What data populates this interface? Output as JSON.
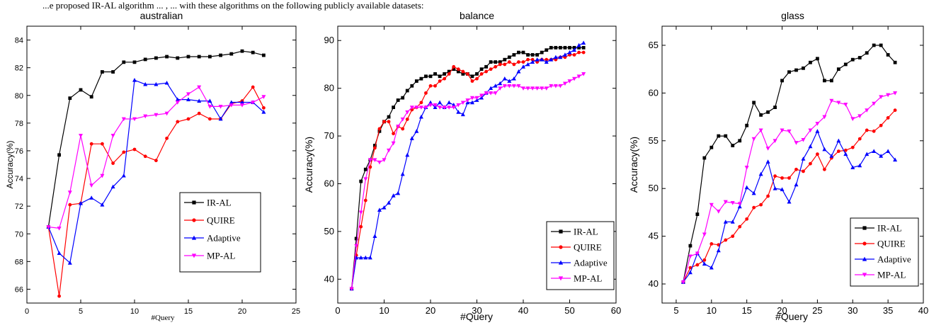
{
  "caption": "...e proposed IR-AL algorithm ... , ... with these algorithms on the following publicly available datasets:",
  "chart_data": [
    {
      "type": "line",
      "title": "australian",
      "xlabel": "#Query",
      "ylabel": "Accuracy(%)",
      "xlim": [
        0,
        25
      ],
      "ylim": [
        65,
        85
      ],
      "xticks": [
        "0",
        "5",
        "10",
        "15",
        "20",
        "25"
      ],
      "yticks": [
        "66",
        "68",
        "70",
        "72",
        "74",
        "76",
        "78",
        "80",
        "82",
        "84"
      ],
      "grid": false,
      "legend_position": "lower-right",
      "series": [
        {
          "name": "IR-AL",
          "color": "#000000",
          "marker": "square",
          "x": [
            2,
            3,
            4,
            5,
            6,
            7,
            8,
            9,
            10,
            11,
            12,
            13,
            14,
            15,
            16,
            17,
            18,
            19,
            20,
            21,
            22
          ],
          "y": [
            70.5,
            75.7,
            79.8,
            80.4,
            79.9,
            81.7,
            81.7,
            82.4,
            82.4,
            82.6,
            82.7,
            82.8,
            82.7,
            82.8,
            82.8,
            82.8,
            82.9,
            83.0,
            83.2,
            83.1,
            82.9
          ]
        },
        {
          "name": "QUIRE",
          "color": "#ff0000",
          "marker": "circle",
          "x": [
            2,
            3,
            4,
            5,
            6,
            7,
            8,
            9,
            10,
            11,
            12,
            13,
            14,
            15,
            16,
            17,
            18,
            19,
            20,
            21,
            22
          ],
          "y": [
            70.5,
            65.5,
            72.1,
            72.2,
            76.5,
            76.5,
            75.1,
            75.9,
            76.1,
            75.6,
            75.3,
            76.9,
            78.1,
            78.3,
            78.7,
            78.3,
            78.3,
            79.4,
            79.6,
            80.6,
            79.1
          ]
        },
        {
          "name": "Adaptive",
          "color": "#0000ff",
          "marker": "triangle",
          "x": [
            2,
            3,
            4,
            5,
            6,
            7,
            8,
            9,
            10,
            11,
            12,
            13,
            14,
            15,
            16,
            17,
            18,
            19,
            20,
            21,
            22
          ],
          "y": [
            70.5,
            68.6,
            67.9,
            72.2,
            72.6,
            72.1,
            73.4,
            74.2,
            81.1,
            80.8,
            80.8,
            80.9,
            79.7,
            79.7,
            79.6,
            79.6,
            78.3,
            79.5,
            79.5,
            79.5,
            78.8
          ]
        },
        {
          "name": "MP-AL",
          "color": "#ff00ff",
          "marker": "triangle-down",
          "x": [
            2,
            3,
            4,
            5,
            6,
            7,
            8,
            9,
            10,
            11,
            12,
            13,
            14,
            15,
            16,
            17,
            18,
            19,
            20,
            21,
            22
          ],
          "y": [
            70.5,
            70.4,
            73.0,
            77.1,
            73.5,
            74.2,
            77.1,
            78.3,
            78.3,
            78.5,
            78.6,
            78.7,
            79.5,
            80.1,
            80.6,
            79.2,
            79.2,
            79.3,
            79.3,
            79.5,
            79.9
          ]
        }
      ]
    },
    {
      "type": "line",
      "title": "balance",
      "xlabel": "#Query",
      "ylabel": "Accuracy(%)",
      "xlim": [
        0,
        60
      ],
      "ylim": [
        35,
        93
      ],
      "xticks": [
        "0",
        "10",
        "20",
        "30",
        "40",
        "50",
        "60"
      ],
      "yticks": [
        "40",
        "50",
        "60",
        "70",
        "80",
        "90"
      ],
      "grid": false,
      "legend_position": "lower-right",
      "series": [
        {
          "name": "IR-AL",
          "color": "#000000",
          "marker": "square",
          "x": [
            3,
            4,
            5,
            6,
            7,
            8,
            9,
            10,
            11,
            12,
            13,
            14,
            15,
            16,
            17,
            18,
            19,
            20,
            21,
            22,
            23,
            24,
            25,
            26,
            27,
            28,
            29,
            30,
            31,
            32,
            33,
            34,
            35,
            36,
            37,
            38,
            39,
            40,
            41,
            42,
            43,
            44,
            45,
            46,
            47,
            48,
            49,
            50,
            51,
            52,
            53
          ],
          "y": [
            38,
            48.5,
            60.5,
            63,
            65,
            68,
            71,
            73,
            74,
            76,
            77.5,
            78,
            79.5,
            80.5,
            81.5,
            82,
            82.5,
            82.5,
            83,
            82.5,
            83,
            83.5,
            84,
            83.5,
            83,
            83,
            82.5,
            83,
            84,
            84.5,
            85.5,
            85.5,
            85.5,
            86,
            86.5,
            87,
            87.5,
            87.5,
            87,
            87,
            87,
            87.5,
            88,
            88.5,
            88.5,
            88.5,
            88.5,
            88.5,
            88.5,
            88.5,
            88.5
          ]
        },
        {
          "name": "QUIRE",
          "color": "#ff0000",
          "marker": "circle",
          "x": [
            3,
            4,
            5,
            6,
            7,
            8,
            9,
            10,
            11,
            12,
            13,
            14,
            15,
            16,
            17,
            18,
            19,
            20,
            21,
            22,
            23,
            24,
            25,
            26,
            27,
            28,
            29,
            30,
            31,
            32,
            33,
            34,
            35,
            36,
            37,
            38,
            39,
            40,
            41,
            42,
            43,
            44,
            45,
            46,
            47,
            48,
            49,
            50,
            51,
            52,
            53
          ],
          "y": [
            38,
            45,
            51,
            56.5,
            63.5,
            67.5,
            71.5,
            73,
            73,
            70.5,
            72,
            71.5,
            73.5,
            75.5,
            76,
            77,
            79,
            80.5,
            80.5,
            81.5,
            82,
            83,
            84.5,
            84,
            83.5,
            83,
            81.5,
            82,
            83,
            83.5,
            84,
            84.5,
            85,
            85,
            85.5,
            85,
            85.5,
            85.5,
            86,
            86,
            85.5,
            86,
            86,
            86,
            86,
            86.5,
            86.5,
            87,
            87,
            87.5,
            87.5
          ]
        },
        {
          "name": "Adaptive",
          "color": "#0000ff",
          "marker": "triangle",
          "x": [
            3,
            4,
            5,
            6,
            7,
            8,
            9,
            10,
            11,
            12,
            13,
            14,
            15,
            16,
            17,
            18,
            19,
            20,
            21,
            22,
            23,
            24,
            25,
            26,
            27,
            28,
            29,
            30,
            31,
            32,
            33,
            34,
            35,
            36,
            37,
            38,
            39,
            40,
            41,
            42,
            43,
            44,
            45,
            46,
            47,
            48,
            49,
            50,
            51,
            52,
            53
          ],
          "y": [
            38,
            44.5,
            44.5,
            44.5,
            44.5,
            49,
            54.5,
            55,
            56,
            57.5,
            58,
            62,
            66,
            69.5,
            71,
            74,
            76,
            77,
            76,
            77,
            76,
            77,
            76.5,
            75,
            74.5,
            77,
            77,
            77.5,
            78,
            79,
            80,
            80.5,
            81,
            82,
            81.5,
            82,
            83.5,
            84.5,
            85,
            85.5,
            86,
            86,
            85.5,
            86,
            86.5,
            86.5,
            87,
            87.5,
            88,
            89,
            89.5
          ]
        },
        {
          "name": "MP-AL",
          "color": "#ff00ff",
          "marker": "triangle-down",
          "x": [
            3,
            4,
            5,
            6,
            7,
            8,
            9,
            10,
            11,
            12,
            13,
            14,
            15,
            16,
            17,
            18,
            19,
            20,
            21,
            22,
            23,
            24,
            25,
            26,
            27,
            28,
            29,
            30,
            31,
            32,
            33,
            34,
            35,
            36,
            37,
            38,
            39,
            40,
            41,
            42,
            43,
            44,
            45,
            46,
            47,
            48,
            49,
            50,
            51,
            52,
            53
          ],
          "y": [
            38,
            47,
            54,
            61,
            65,
            65,
            64.5,
            65,
            67,
            68.5,
            72,
            73.5,
            75,
            76,
            76,
            76,
            76,
            76.5,
            76.5,
            76,
            76,
            76,
            76,
            76.5,
            77,
            77.5,
            78,
            78,
            78.5,
            79,
            79,
            79,
            80,
            80.5,
            80.5,
            80.5,
            80.5,
            80,
            80,
            80,
            80,
            80,
            80,
            80.5,
            80.5,
            80.5,
            81,
            81.5,
            82,
            82.5,
            83
          ]
        }
      ]
    },
    {
      "type": "line",
      "title": "glass",
      "xlabel": "#Query",
      "ylabel": "Accuracy(%)",
      "xlim": [
        3,
        40
      ],
      "ylim": [
        38,
        67
      ],
      "xticks": [
        "5",
        "10",
        "15",
        "20",
        "25",
        "30",
        "35",
        "40"
      ],
      "yticks": [
        "40",
        "45",
        "50",
        "55",
        "60",
        "65"
      ],
      "grid": false,
      "legend_position": "lower-right",
      "series": [
        {
          "name": "IR-AL",
          "color": "#000000",
          "marker": "square",
          "x": [
            6,
            7,
            8,
            9,
            10,
            11,
            12,
            13,
            14,
            15,
            16,
            17,
            18,
            19,
            20,
            21,
            22,
            23,
            24,
            25,
            26,
            27,
            28,
            29,
            30,
            31,
            32,
            33,
            34,
            35,
            36
          ],
          "y": [
            40.2,
            44,
            47.3,
            53.2,
            54.3,
            55.5,
            55.5,
            54.5,
            55,
            56.6,
            59,
            57.7,
            58,
            58.5,
            61.3,
            62.2,
            62.4,
            62.6,
            63.2,
            63.6,
            61.3,
            61.3,
            62.5,
            63,
            63.5,
            63.7,
            64.2,
            65,
            65,
            64,
            63.2
          ]
        },
        {
          "name": "QUIRE",
          "color": "#ff0000",
          "marker": "circle",
          "x": [
            6,
            7,
            8,
            9,
            10,
            11,
            12,
            13,
            14,
            15,
            16,
            17,
            18,
            19,
            20,
            21,
            22,
            23,
            24,
            25,
            26,
            27,
            28,
            29,
            30,
            31,
            32,
            33,
            34,
            35,
            36
          ],
          "y": [
            40.2,
            41.7,
            42,
            42.5,
            44.2,
            44.1,
            44.6,
            45,
            46,
            46.8,
            48,
            48.3,
            49.2,
            51.3,
            51.1,
            51.1,
            52,
            51.8,
            52.6,
            53.6,
            52,
            53.2,
            53.9,
            54,
            54.3,
            55.2,
            56.1,
            56,
            56.6,
            57.4,
            58.2
          ]
        },
        {
          "name": "Adaptive",
          "color": "#0000ff",
          "marker": "triangle",
          "x": [
            6,
            7,
            8,
            9,
            10,
            11,
            12,
            13,
            14,
            15,
            16,
            17,
            18,
            19,
            20,
            21,
            22,
            23,
            24,
            25,
            26,
            27,
            28,
            29,
            30,
            31,
            32,
            33,
            34,
            35,
            36
          ],
          "y": [
            40.2,
            41.2,
            43.2,
            42.1,
            41.7,
            43.5,
            46.5,
            46.5,
            48.1,
            50.1,
            49.5,
            51.5,
            52.8,
            50,
            49.9,
            48.6,
            50.4,
            53.1,
            54.4,
            56,
            54.1,
            53.4,
            55,
            53.6,
            52.2,
            52.4,
            53.6,
            53.9,
            53.4,
            53.9,
            53
          ]
        },
        {
          "name": "MP-AL",
          "color": "#ff00ff",
          "marker": "triangle-down",
          "x": [
            6,
            7,
            8,
            9,
            10,
            11,
            12,
            13,
            14,
            15,
            16,
            17,
            18,
            19,
            20,
            21,
            22,
            23,
            24,
            25,
            26,
            27,
            28,
            29,
            30,
            31,
            32,
            33,
            34,
            35,
            36
          ],
          "y": [
            40.2,
            42.9,
            43.2,
            45.2,
            48.3,
            47.6,
            48.6,
            48.5,
            48.4,
            52.2,
            55.2,
            56.1,
            54.2,
            55,
            56.1,
            56,
            54.8,
            55.1,
            56.1,
            56.8,
            57.5,
            59.2,
            59,
            58.8,
            57.3,
            57.6,
            58.2,
            58.9,
            59.6,
            59.8,
            60
          ]
        }
      ]
    }
  ]
}
